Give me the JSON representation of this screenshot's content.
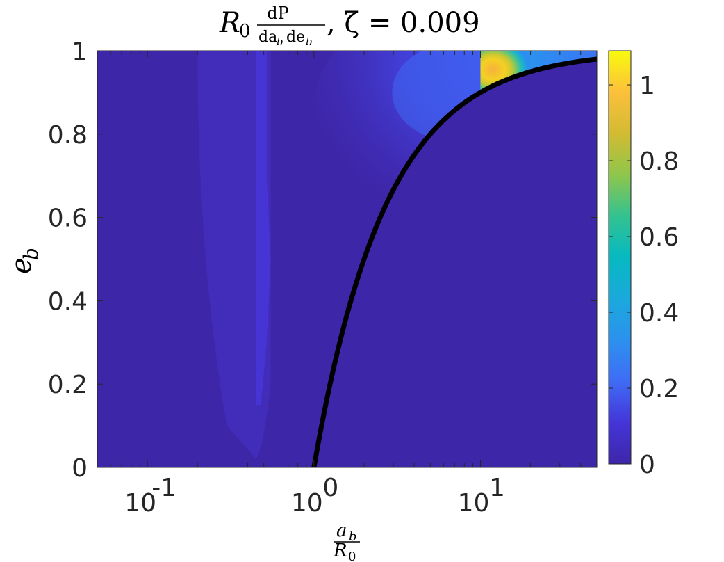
{
  "chart_data": {
    "type": "heatmap",
    "title": {
      "prefix": "R",
      "prefix_sub": "0",
      "frac_num": "dP",
      "frac_den_a": "da",
      "frac_den_a_sub": "b",
      "frac_den_e": "de",
      "frac_den_e_sub": "b",
      "suffix": ", ζ = 0.009"
    },
    "xlabel": {
      "num": "a",
      "num_sub": "b",
      "den": "R",
      "den_sub": "0"
    },
    "ylabel": {
      "text": "e",
      "sub": "b"
    },
    "x_scale": "log",
    "xlim": [
      0.05,
      50
    ],
    "ylim": [
      0,
      1
    ],
    "x_ticks": [
      {
        "value": 0.1,
        "base": "10",
        "exp": "-1"
      },
      {
        "value": 1,
        "base": "10",
        "exp": "0"
      },
      {
        "value": 10,
        "base": "10",
        "exp": "1"
      }
    ],
    "y_ticks": [
      {
        "value": 0,
        "label": "0"
      },
      {
        "value": 0.2,
        "label": "0.2"
      },
      {
        "value": 0.4,
        "label": "0.4"
      },
      {
        "value": 0.6,
        "label": "0.6"
      },
      {
        "value": 0.8,
        "label": "0.8"
      },
      {
        "value": 1,
        "label": "1"
      }
    ],
    "colorbar": {
      "range": [
        0,
        1.09
      ],
      "ticks": [
        {
          "value": 0,
          "label": "0"
        },
        {
          "value": 0.2,
          "label": "0.2"
        },
        {
          "value": 0.4,
          "label": "0.4"
        },
        {
          "value": 0.6,
          "label": "0.6"
        },
        {
          "value": 0.8,
          "label": "0.8"
        },
        {
          "value": 1,
          "label": "1"
        }
      ],
      "colormap": "parula"
    },
    "curve": {
      "description_equation": "e_b = 1 - R0 / a_b",
      "color": "#000000",
      "points": [
        {
          "x": 1,
          "y": 0
        },
        {
          "x": 1.1,
          "y": 0.091
        },
        {
          "x": 1.25,
          "y": 0.2
        },
        {
          "x": 1.5,
          "y": 0.333
        },
        {
          "x": 2,
          "y": 0.5
        },
        {
          "x": 2.5,
          "y": 0.6
        },
        {
          "x": 3,
          "y": 0.667
        },
        {
          "x": 4,
          "y": 0.75
        },
        {
          "x": 5,
          "y": 0.8
        },
        {
          "x": 7,
          "y": 0.857
        },
        {
          "x": 10,
          "y": 0.9
        },
        {
          "x": 15,
          "y": 0.933
        },
        {
          "x": 20,
          "y": 0.95
        },
        {
          "x": 30,
          "y": 0.967
        },
        {
          "x": 40,
          "y": 0.975
        },
        {
          "x": 50,
          "y": 0.98
        }
      ]
    },
    "regions": [
      {
        "name": "background",
        "value": 0.02
      },
      {
        "name": "ridge-band",
        "x_range": [
          0.3,
          0.6
        ],
        "value": 0.08
      },
      {
        "name": "contour-lobes",
        "x_range": [
          1.2,
          8
        ],
        "y_range": [
          0.6,
          0.95
        ],
        "value": 0.15
      },
      {
        "name": "peak",
        "x_range": [
          10,
          20
        ],
        "y_range": [
          0.9,
          1.0
        ],
        "value": 1.05
      },
      {
        "name": "upper-tail",
        "x_range": [
          20,
          50
        ],
        "y_range": [
          0.95,
          1.0
        ],
        "value": 0.35
      }
    ],
    "colors": {
      "base": "#3e26a8",
      "low": "#4433c9",
      "mid_blue": "#3f6cf5",
      "cyan": "#12bac4",
      "green": "#74c55b",
      "orange": "#f7b13d",
      "yellow": "#f8fa0d"
    }
  }
}
